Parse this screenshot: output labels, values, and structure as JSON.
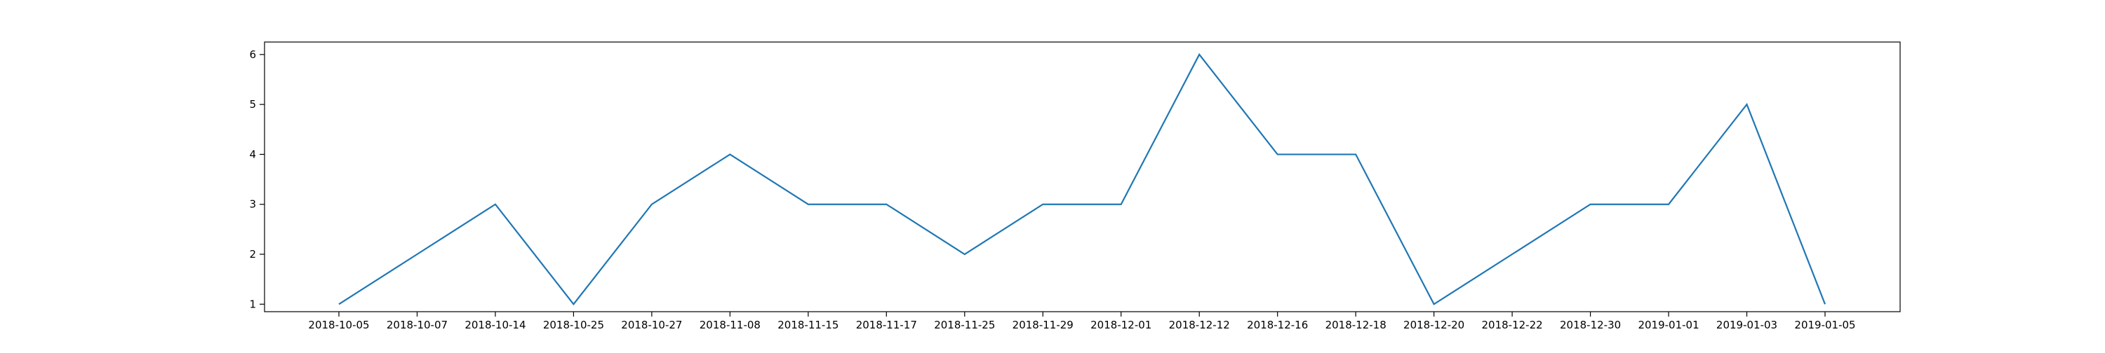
{
  "chart_data": {
    "type": "line",
    "categories": [
      "2018-10-05",
      "2018-10-07",
      "2018-10-14",
      "2018-10-25",
      "2018-10-27",
      "2018-11-08",
      "2018-11-15",
      "2018-11-17",
      "2018-11-25",
      "2018-11-29",
      "2018-12-01",
      "2018-12-12",
      "2018-12-16",
      "2018-12-18",
      "2018-12-20",
      "2018-12-22",
      "2018-12-30",
      "2019-01-01",
      "2019-01-03",
      "2019-01-05"
    ],
    "series": [
      {
        "values": [
          1,
          2,
          3,
          1,
          3,
          4,
          3,
          3,
          2,
          3,
          3,
          6,
          4,
          4,
          1,
          2,
          3,
          3,
          5,
          1
        ],
        "color": "#1f77b4"
      }
    ],
    "title": "",
    "xlabel": "",
    "ylabel": "",
    "ylim": [
      0.85,
      6.25
    ],
    "yticks": [
      1,
      2,
      3,
      4,
      5,
      6
    ],
    "grid": false,
    "legend": "none"
  }
}
